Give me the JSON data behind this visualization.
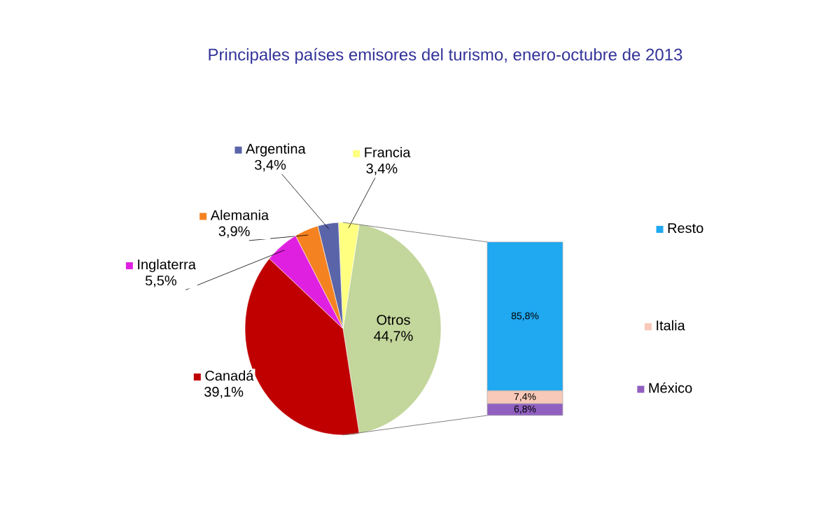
{
  "chart_data": [
    {
      "type": "pie",
      "title": "Principales países emisores del turismo, enero-octubre de 2013",
      "categories": [
        "Otros",
        "Francia",
        "Argentina",
        "Alemania",
        "Inglaterra",
        "Canadá"
      ],
      "values": [
        44.7,
        3.4,
        3.4,
        3.9,
        5.5,
        39.1
      ],
      "colors": [
        "#c3d69b",
        "#ffff80",
        "#5a64a8",
        "#f58220",
        "#e020e0",
        "#c00000"
      ],
      "value_labels": [
        "44,7%",
        "3,4%",
        "3,4%",
        "3,9%",
        "5,5%",
        "39,1%"
      ],
      "legend": "left"
    },
    {
      "type": "bar",
      "stacked": true,
      "tick_labels": false,
      "legend": "right",
      "categories": [
        null
      ],
      "series": [
        {
          "name": "México",
          "color": "#9060c0",
          "values": [
            6.8
          ],
          "value_labels": [
            "6,8%"
          ]
        },
        {
          "name": "Italia",
          "color": "#f8c8b8",
          "values": [
            7.4
          ],
          "value_labels": [
            "7,4%"
          ]
        },
        {
          "name": "Resto",
          "color": "#20a8f0",
          "values": [
            85.8
          ],
          "value_labels": [
            "85,8%"
          ]
        }
      ]
    }
  ]
}
